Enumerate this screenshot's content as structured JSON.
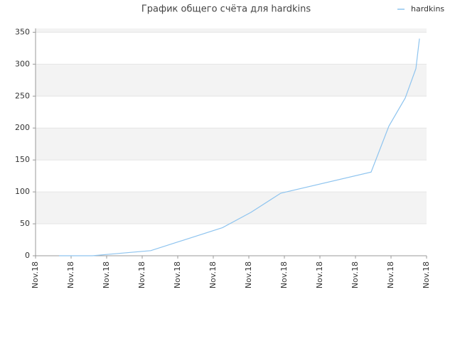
{
  "chart_data": {
    "type": "line",
    "title": "График общего счёта для hardkins",
    "series": [
      {
        "name": "hardkins",
        "color": "#8ec4ef",
        "x": [
          0.66,
          1.6,
          2.0,
          3.24,
          5.26,
          6.06,
          6.9,
          9.44,
          9.94,
          10.4,
          10.7,
          10.8
        ],
        "values": [
          0,
          0,
          2,
          8,
          44,
          68,
          98,
          131,
          203,
          247,
          293,
          340
        ]
      }
    ],
    "xlim": [
      0,
      11
    ],
    "xticks": [
      {
        "value": 0,
        "label": "Nov.18"
      },
      {
        "value": 1,
        "label": "Nov.18"
      },
      {
        "value": 2,
        "label": "Nov.18"
      },
      {
        "value": 3,
        "label": "Nov.18"
      },
      {
        "value": 4,
        "label": "Nov.18"
      },
      {
        "value": 5,
        "label": "Nov.18"
      },
      {
        "value": 6,
        "label": "Nov.18"
      },
      {
        "value": 7,
        "label": "Nov.18"
      },
      {
        "value": 8,
        "label": "Nov.18"
      },
      {
        "value": 9,
        "label": "Nov.18"
      },
      {
        "value": 10,
        "label": "Nov.18"
      },
      {
        "value": 11,
        "label": "Nov.18"
      }
    ],
    "ylim": [
      0,
      356
    ],
    "yticks": [
      0,
      50,
      100,
      150,
      200,
      250,
      300,
      350
    ],
    "grid": true,
    "legend": "top-right"
  }
}
